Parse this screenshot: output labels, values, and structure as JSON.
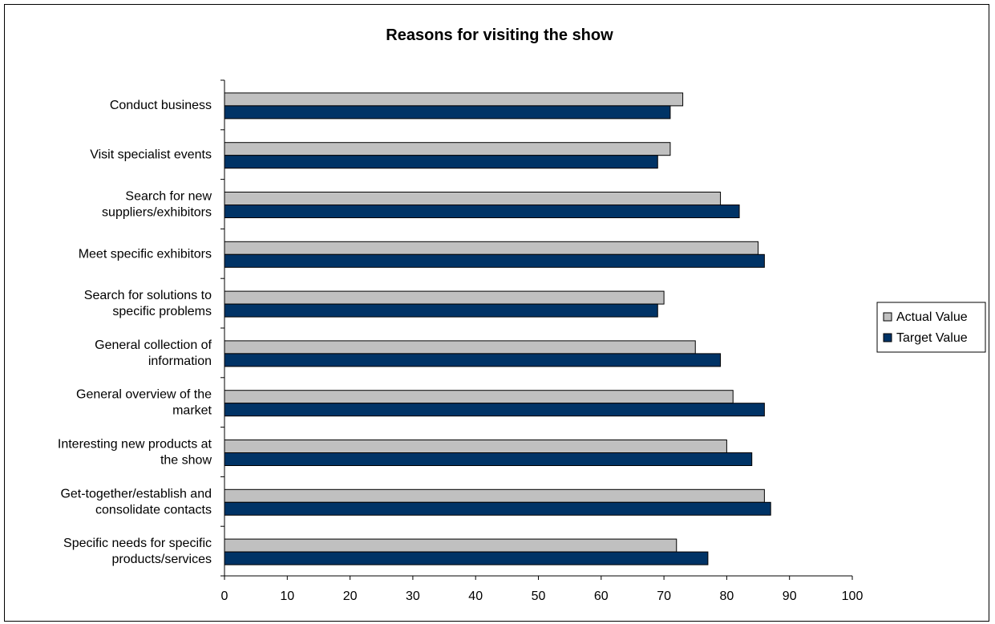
{
  "chart_data": {
    "type": "bar",
    "orientation": "horizontal",
    "title": "Reasons for visiting the show",
    "categories": [
      "Conduct business",
      "Visit specialist events",
      "Search for new suppliers/exhibitors",
      "Meet specific exhibitors",
      "Search for solutions to specific problems",
      "General collection of information",
      "General overview of the market",
      "Interesting new products at the show",
      "Get-together/establish and consolidate contacts",
      "Specific needs for specific products/services"
    ],
    "category_lines": [
      [
        "Conduct business"
      ],
      [
        "Visit specialist events"
      ],
      [
        "Search for new",
        "suppliers/exhibitors"
      ],
      [
        "Meet specific exhibitors"
      ],
      [
        "Search for solutions to",
        "specific problems"
      ],
      [
        "General collection of",
        "information"
      ],
      [
        "General overview of the",
        "market"
      ],
      [
        "Interesting new products at",
        "the show"
      ],
      [
        "Get-together/establish and",
        "consolidate contacts"
      ],
      [
        "Specific needs for specific",
        "products/services"
      ]
    ],
    "series": [
      {
        "name": "Actual Value",
        "color": "#C0C0C0",
        "values": [
          73,
          71,
          79,
          85,
          70,
          75,
          81,
          80,
          86,
          72
        ]
      },
      {
        "name": "Target Value",
        "color": "#003366",
        "values": [
          71,
          69,
          82,
          86,
          69,
          79,
          86,
          84,
          87,
          77
        ]
      }
    ],
    "xlim": [
      0,
      100
    ],
    "xticks": [
      "0",
      "10",
      "20",
      "30",
      "40",
      "50",
      "60",
      "70",
      "80",
      "90",
      "100"
    ],
    "xlabel": "",
    "ylabel": "",
    "grid": false,
    "legend_position": "right"
  }
}
